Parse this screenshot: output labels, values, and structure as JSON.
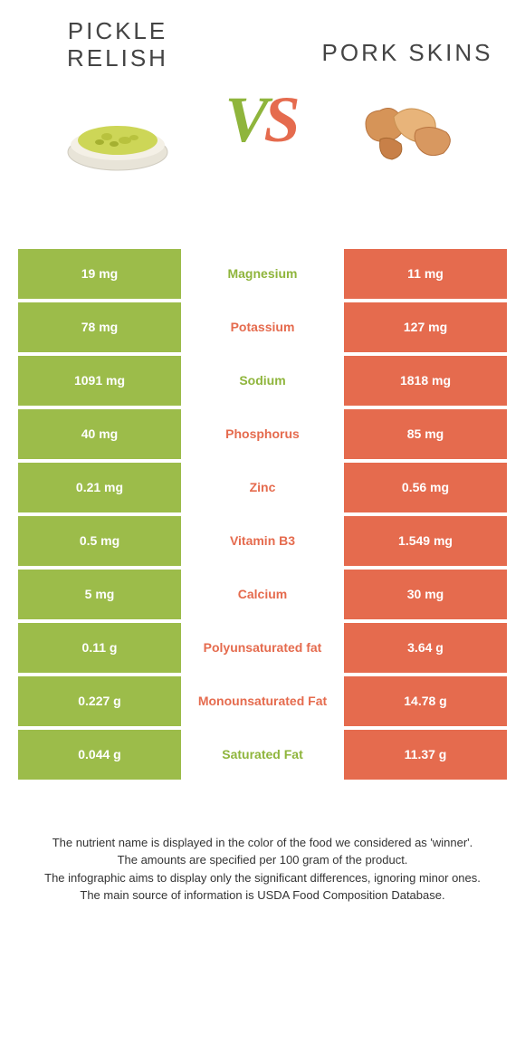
{
  "colors": {
    "left": "#9cbc4a",
    "right": "#e56b4e",
    "leftText": "#8fb53c",
    "rightText": "#e56b4e"
  },
  "foodLeft": {
    "title": "PICKLE RELISH"
  },
  "foodRight": {
    "title": "PORK SKINS"
  },
  "rows": [
    {
      "left": "19 mg",
      "label": "Magnesium",
      "right": "11 mg",
      "winner": "left"
    },
    {
      "left": "78 mg",
      "label": "Potassium",
      "right": "127 mg",
      "winner": "right"
    },
    {
      "left": "1091 mg",
      "label": "Sodium",
      "right": "1818 mg",
      "winner": "left"
    },
    {
      "left": "40 mg",
      "label": "Phosphorus",
      "right": "85 mg",
      "winner": "right"
    },
    {
      "left": "0.21 mg",
      "label": "Zinc",
      "right": "0.56 mg",
      "winner": "right"
    },
    {
      "left": "0.5 mg",
      "label": "Vitamin B3",
      "right": "1.549 mg",
      "winner": "right"
    },
    {
      "left": "5 mg",
      "label": "Calcium",
      "right": "30 mg",
      "winner": "right"
    },
    {
      "left": "0.11 g",
      "label": "Polyunsaturated fat",
      "right": "3.64 g",
      "winner": "right"
    },
    {
      "left": "0.227 g",
      "label": "Monounsaturated Fat",
      "right": "14.78 g",
      "winner": "right"
    },
    {
      "left": "0.044 g",
      "label": "Saturated Fat",
      "right": "11.37 g",
      "winner": "left"
    }
  ],
  "footer": {
    "l1": "The nutrient name is displayed in the color of the food we considered as 'winner'.",
    "l2": "The amounts are specified per 100 gram of the product.",
    "l3": "The infographic aims to display only the significant differences, ignoring minor ones.",
    "l4": "The main source of information is USDA Food Composition Database."
  }
}
